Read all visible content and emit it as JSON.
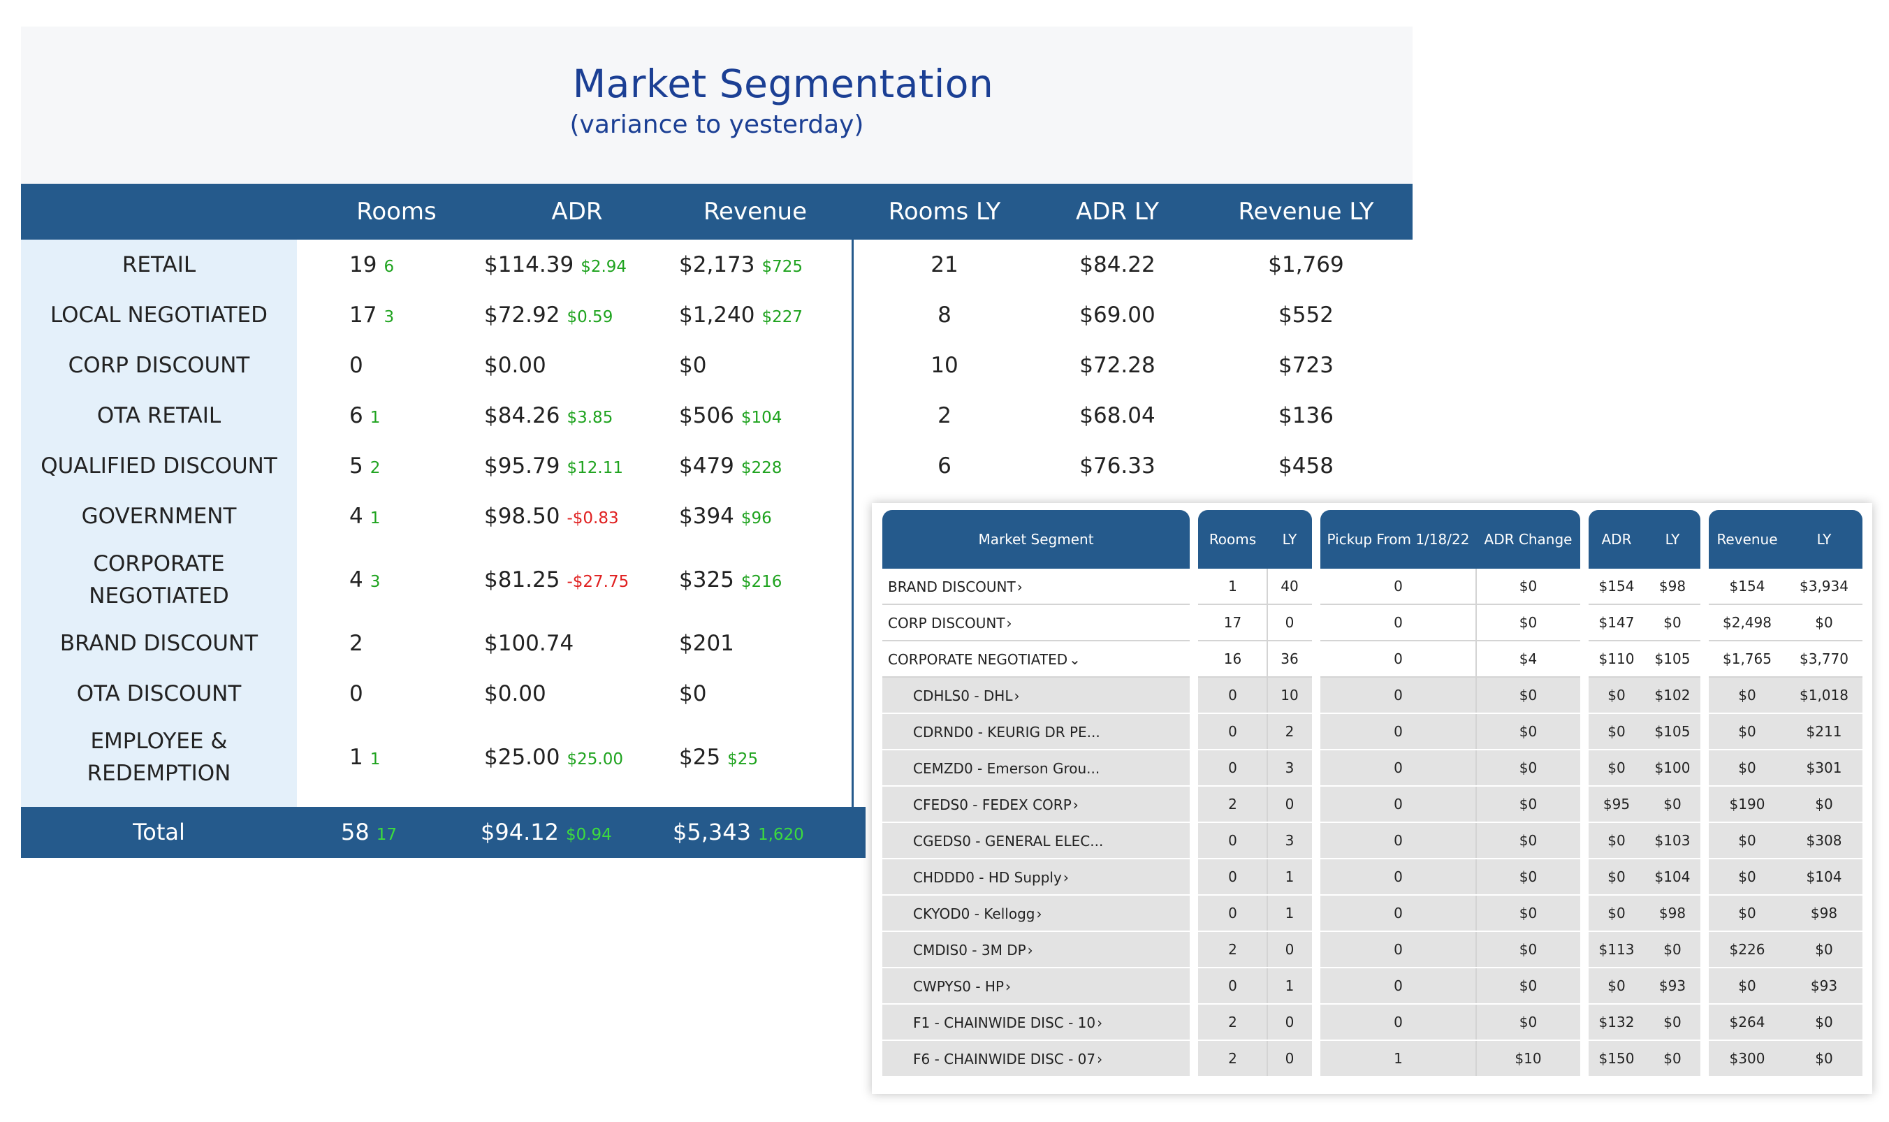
{
  "panel1": {
    "title": "Market Segmentation",
    "subtitle": "(variance to yesterday)",
    "headers": [
      "Rooms",
      "ADR",
      "Revenue",
      "Rooms LY",
      "ADR LY",
      "Revenue LY"
    ],
    "rows": [
      {
        "label": "RETAIL",
        "rooms": "19",
        "rooms_delta": "6",
        "adr": "$114.39",
        "adr_delta": "$2.94",
        "rev": "$2,173",
        "rev_delta": "$725",
        "rooms_ly": "21",
        "adr_ly": "$84.22",
        "rev_ly": "$1,769"
      },
      {
        "label": "LOCAL NEGOTIATED",
        "rooms": "17",
        "rooms_delta": "3",
        "adr": "$72.92",
        "adr_delta": "$0.59",
        "rev": "$1,240",
        "rev_delta": "$227",
        "rooms_ly": "8",
        "adr_ly": "$69.00",
        "rev_ly": "$552"
      },
      {
        "label": "CORP DISCOUNT",
        "rooms": "0",
        "rooms_delta": "",
        "adr": "$0.00",
        "adr_delta": "",
        "rev": "$0",
        "rev_delta": "",
        "rooms_ly": "10",
        "adr_ly": "$72.28",
        "rev_ly": "$723"
      },
      {
        "label": "OTA RETAIL",
        "rooms": "6",
        "rooms_delta": "1",
        "adr": "$84.26",
        "adr_delta": "$3.85",
        "rev": "$506",
        "rev_delta": "$104",
        "rooms_ly": "2",
        "adr_ly": "$68.04",
        "rev_ly": "$136"
      },
      {
        "label": "QUALIFIED DISCOUNT",
        "rooms": "5",
        "rooms_delta": "2",
        "adr": "$95.79",
        "adr_delta": "$12.11",
        "rev": "$479",
        "rev_delta": "$228",
        "rooms_ly": "6",
        "adr_ly": "$76.33",
        "rev_ly": "$458"
      },
      {
        "label": "GOVERNMENT",
        "rooms": "4",
        "rooms_delta": "1",
        "adr": "$98.50",
        "adr_delta": "-$0.83",
        "rev": "$394",
        "rev_delta": "$96",
        "rooms_ly": "",
        "adr_ly": "",
        "rev_ly": ""
      },
      {
        "label": "CORPORATE NEGOTIATED",
        "rooms": "4",
        "rooms_delta": "3",
        "adr": "$81.25",
        "adr_delta": "-$27.75",
        "rev": "$325",
        "rev_delta": "$216",
        "rooms_ly": "",
        "adr_ly": "",
        "rev_ly": ""
      },
      {
        "label": "BRAND DISCOUNT",
        "rooms": "2",
        "rooms_delta": "",
        "adr": "$100.74",
        "adr_delta": "",
        "rev": "$201",
        "rev_delta": "",
        "rooms_ly": "",
        "adr_ly": "",
        "rev_ly": ""
      },
      {
        "label": "OTA DISCOUNT",
        "rooms": "0",
        "rooms_delta": "",
        "adr": "$0.00",
        "adr_delta": "",
        "rev": "$0",
        "rev_delta": "",
        "rooms_ly": "",
        "adr_ly": "",
        "rev_ly": ""
      },
      {
        "label": "EMPLOYEE & REDEMPTION",
        "rooms": "1",
        "rooms_delta": "1",
        "adr": "$25.00",
        "adr_delta": "$25.00",
        "rev": "$25",
        "rev_delta": "$25",
        "rooms_ly": "",
        "adr_ly": "",
        "rev_ly": ""
      }
    ],
    "total": {
      "label": "Total",
      "rooms": "58",
      "rooms_delta": "17",
      "adr": "$94.12",
      "adr_delta": "$0.94",
      "rev": "$5,343",
      "rev_delta": "1,620"
    }
  },
  "panel2": {
    "headers": {
      "segment": "Market Segment",
      "rooms": "Rooms",
      "rooms_ly": "LY",
      "pickup": "Pickup From 1/18/22",
      "adr_change": "ADR Change",
      "adr": "ADR",
      "adr_ly": "LY",
      "revenue": "Revenue",
      "revenue_ly": "LY"
    },
    "rows": [
      {
        "name": "BRAND DISCOUNT",
        "chevron": "›",
        "child": false,
        "rooms": "1",
        "rooms_ly": "40",
        "pickup": "0",
        "adr_change": "$0",
        "adr": "$154",
        "adr_ly": "$98",
        "rev": "$154",
        "rev_ly": "$3,934"
      },
      {
        "name": "CORP DISCOUNT",
        "chevron": "›",
        "child": false,
        "rooms": "17",
        "rooms_ly": "0",
        "pickup": "0",
        "adr_change": "$0",
        "adr": "$147",
        "adr_ly": "$0",
        "rev": "$2,498",
        "rev_ly": "$0"
      },
      {
        "name": "CORPORATE NEGOTIATED",
        "chevron": "⌄",
        "child": false,
        "rooms": "16",
        "rooms_ly": "36",
        "pickup": "0",
        "adr_change": "$4",
        "adr": "$110",
        "adr_ly": "$105",
        "rev": "$1,765",
        "rev_ly": "$3,770"
      },
      {
        "name": "CDHLS0 - DHL",
        "chevron": "›",
        "child": true,
        "rooms": "0",
        "rooms_ly": "10",
        "pickup": "0",
        "adr_change": "$0",
        "adr": "$0",
        "adr_ly": "$102",
        "rev": "$0",
        "rev_ly": "$1,018"
      },
      {
        "name": "CDRND0 - KEURIG DR PE...",
        "chevron": "",
        "child": true,
        "rooms": "0",
        "rooms_ly": "2",
        "pickup": "0",
        "adr_change": "$0",
        "adr": "$0",
        "adr_ly": "$105",
        "rev": "$0",
        "rev_ly": "$211"
      },
      {
        "name": "CEMZD0 - Emerson Grou...",
        "chevron": "",
        "child": true,
        "rooms": "0",
        "rooms_ly": "3",
        "pickup": "0",
        "adr_change": "$0",
        "adr": "$0",
        "adr_ly": "$100",
        "rev": "$0",
        "rev_ly": "$301"
      },
      {
        "name": "CFEDS0 - FEDEX CORP",
        "chevron": "›",
        "child": true,
        "rooms": "2",
        "rooms_ly": "0",
        "pickup": "0",
        "adr_change": "$0",
        "adr": "$95",
        "adr_ly": "$0",
        "rev": "$190",
        "rev_ly": "$0"
      },
      {
        "name": "CGEDS0 - GENERAL ELEC...",
        "chevron": "",
        "child": true,
        "rooms": "0",
        "rooms_ly": "3",
        "pickup": "0",
        "adr_change": "$0",
        "adr": "$0",
        "adr_ly": "$103",
        "rev": "$0",
        "rev_ly": "$308"
      },
      {
        "name": "CHDDD0 - HD Supply",
        "chevron": "›",
        "child": true,
        "rooms": "0",
        "rooms_ly": "1",
        "pickup": "0",
        "adr_change": "$0",
        "adr": "$0",
        "adr_ly": "$104",
        "rev": "$0",
        "rev_ly": "$104"
      },
      {
        "name": "CKYOD0 - Kellogg",
        "chevron": "›",
        "child": true,
        "rooms": "0",
        "rooms_ly": "1",
        "pickup": "0",
        "adr_change": "$0",
        "adr": "$0",
        "adr_ly": "$98",
        "rev": "$0",
        "rev_ly": "$98"
      },
      {
        "name": "CMDIS0 - 3M DP",
        "chevron": "›",
        "child": true,
        "rooms": "2",
        "rooms_ly": "0",
        "pickup": "0",
        "adr_change": "$0",
        "adr": "$113",
        "adr_ly": "$0",
        "rev": "$226",
        "rev_ly": "$0"
      },
      {
        "name": "CWPYS0 - HP",
        "chevron": "›",
        "child": true,
        "rooms": "0",
        "rooms_ly": "1",
        "pickup": "0",
        "adr_change": "$0",
        "adr": "$0",
        "adr_ly": "$93",
        "rev": "$0",
        "rev_ly": "$93"
      },
      {
        "name": "F1 - CHAINWIDE DISC - 10",
        "chevron": "›",
        "child": true,
        "rooms": "2",
        "rooms_ly": "0",
        "pickup": "0",
        "adr_change": "$0",
        "adr": "$132",
        "adr_ly": "$0",
        "rev": "$264",
        "rev_ly": "$0"
      },
      {
        "name": "F6 - CHAINWIDE DISC - 07",
        "chevron": "›",
        "child": true,
        "rooms": "2",
        "rooms_ly": "0",
        "pickup": "1",
        "adr_change": "$10",
        "adr": "$150",
        "adr_ly": "$0",
        "rev": "$300",
        "rev_ly": "$0"
      }
    ]
  },
  "colors": {
    "header_blue": "#255a8c",
    "label_col": "#e4f0fa",
    "title_blue": "#1b3f94",
    "positive": "#1fa31f",
    "negative": "#e02020",
    "segment_link": "#2f5d8f",
    "child_row": "#e3e3e3"
  }
}
